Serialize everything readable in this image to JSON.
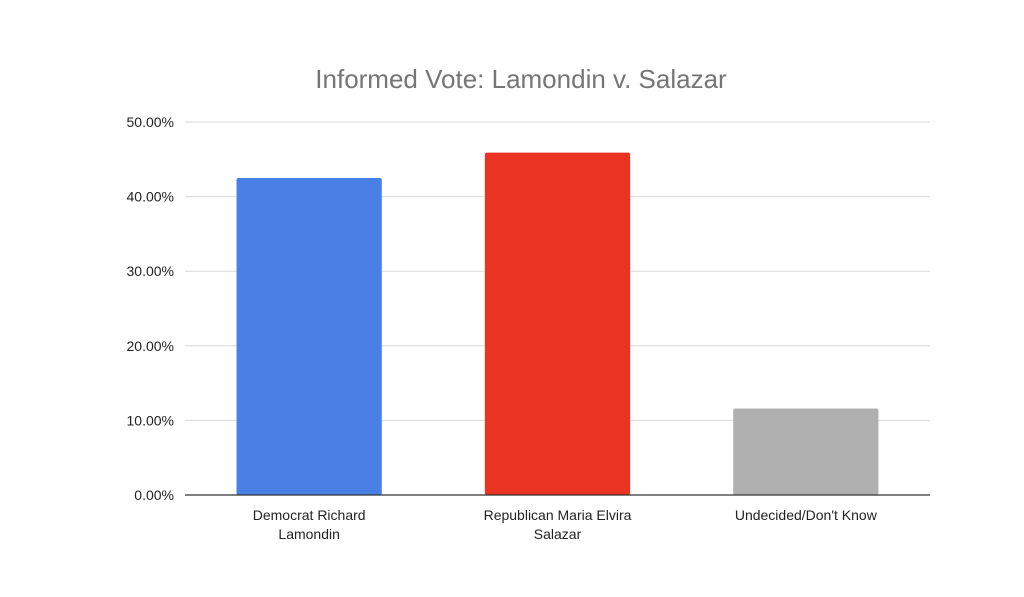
{
  "chart_data": {
    "type": "bar",
    "title": "Informed Vote: Lamondin v. Salazar",
    "xlabel": "",
    "ylabel": "",
    "categories": [
      [
        "Democrat Richard",
        "Lamondin"
      ],
      [
        "Republican Maria Elvira",
        "Salazar"
      ],
      [
        "Undecided/Don't Know"
      ]
    ],
    "values": [
      42.5,
      45.9,
      11.6
    ],
    "bar_colors": [
      "#4a80e6",
      "#ea3323",
      "#b0b0b0"
    ],
    "ylim": [
      0,
      50
    ],
    "yticks": [
      0,
      10,
      20,
      30,
      40,
      50
    ],
    "ytick_labels": [
      "0.00%",
      "10.00%",
      "20.00%",
      "30.00%",
      "40.00%",
      "50.00%"
    ],
    "grid": true,
    "legend": "none"
  }
}
